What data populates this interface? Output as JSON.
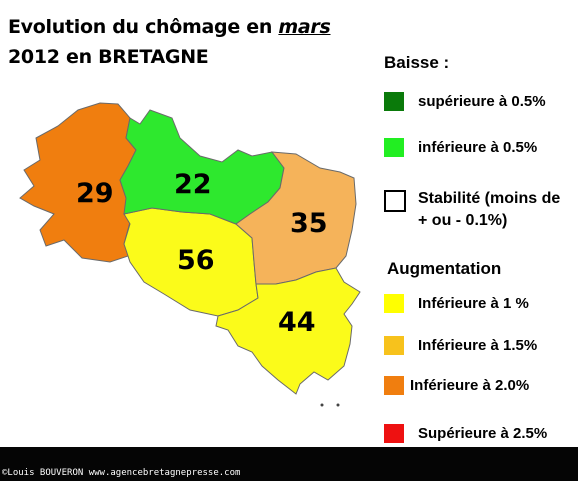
{
  "title": {
    "line1_prefix": "Evolution du chômage en ",
    "line1_underlined": "mars",
    "line2": "2012 en BRETAGNE"
  },
  "map": {
    "departments": [
      {
        "code": "29",
        "category": "inferieure_2_0",
        "color": "#f07e0f"
      },
      {
        "code": "22",
        "category": "baisse_inferieure_0_5",
        "color": "#2ee82e"
      },
      {
        "code": "35",
        "category": "inferieure_1_5",
        "color": "#f5b35a"
      },
      {
        "code": "56",
        "category": "inferieure_1",
        "color": "#fbfb1a"
      },
      {
        "code": "44",
        "category": "inferieure_1",
        "color": "#fbfb1a"
      }
    ]
  },
  "legend": {
    "baisse_heading": "Baisse :",
    "baisse_items": [
      {
        "label": "supérieure à 0.5%",
        "color": "#0a7a0a"
      },
      {
        "label": "inférieure à 0.5%",
        "color": "#22ee22"
      }
    ],
    "stabilite": {
      "line1": "Stabilité (moins de",
      "line2": "+ ou - 0.1%)"
    },
    "augmentation_heading": "Augmentation",
    "augmentation_items": [
      {
        "label": "Inférieure à 1 %",
        "color": "#ffff00"
      },
      {
        "label": "Inférieure à 1.5%",
        "color": "#f7c21c"
      },
      {
        "label": "Inférieure à 2.0%",
        "color": "#f07e0f"
      },
      {
        "label": "Supérieure à 2.5%",
        "color": "#ee1111"
      }
    ]
  },
  "footer": {
    "credit": "©Louis BOUVERON  www.agencebretagnepresse.com"
  }
}
